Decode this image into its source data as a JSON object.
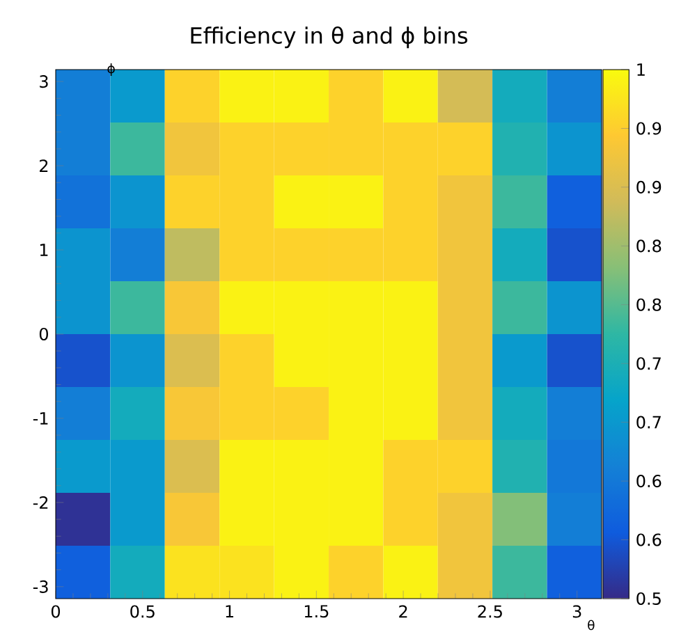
{
  "chart_data": {
    "type": "heatmap",
    "title": "Efficiency in θ and ϕ bins",
    "xlabel": "θ",
    "ylabel": "ϕ",
    "x": [
      0.157,
      0.471,
      0.785,
      1.1,
      1.414,
      1.728,
      2.042,
      2.356,
      2.67,
      2.985
    ],
    "y": [
      2.827,
      2.199,
      1.571,
      0.942,
      0.314,
      -0.314,
      -0.942,
      -1.571,
      -2.199,
      -2.827
    ],
    "xlim": [
      0,
      3.1416
    ],
    "ylim": [
      -3.1416,
      3.1416
    ],
    "xticks": [
      0,
      0.5,
      1,
      1.5,
      2,
      2.5,
      3
    ],
    "yticks": [
      -3,
      -2,
      -1,
      0,
      1,
      2,
      3
    ],
    "clim": [
      0.5,
      1
    ],
    "cticks": [
      {
        "value": 0.5,
        "label": "0.5"
      },
      {
        "value": 0.5556,
        "label": "0.6"
      },
      {
        "value": 0.6111,
        "label": "0.6"
      },
      {
        "value": 0.6667,
        "label": "0.7"
      },
      {
        "value": 0.7222,
        "label": "0.7"
      },
      {
        "value": 0.7778,
        "label": "0.8"
      },
      {
        "value": 0.8333,
        "label": "0.8"
      },
      {
        "value": 0.8889,
        "label": "0.9"
      },
      {
        "value": 0.9444,
        "label": "0.9"
      },
      {
        "value": 1,
        "label": "1"
      }
    ],
    "cells": [
      [
        0.62,
        0.67,
        0.95,
        0.99,
        0.99,
        0.95,
        0.99,
        0.88,
        0.71,
        0.62
      ],
      [
        0.62,
        0.76,
        0.92,
        0.95,
        0.95,
        0.95,
        0.95,
        0.95,
        0.73,
        0.66
      ],
      [
        0.6,
        0.66,
        0.95,
        0.95,
        0.99,
        0.99,
        0.95,
        0.92,
        0.76,
        0.57
      ],
      [
        0.66,
        0.62,
        0.86,
        0.95,
        0.95,
        0.95,
        0.95,
        0.92,
        0.71,
        0.55
      ],
      [
        0.66,
        0.76,
        0.93,
        0.99,
        0.99,
        0.99,
        0.99,
        0.92,
        0.76,
        0.66
      ],
      [
        0.55,
        0.66,
        0.89,
        0.95,
        0.99,
        0.99,
        0.99,
        0.92,
        0.67,
        0.55
      ],
      [
        0.62,
        0.71,
        0.93,
        0.95,
        0.95,
        0.99,
        0.99,
        0.92,
        0.71,
        0.62
      ],
      [
        0.67,
        0.67,
        0.89,
        0.99,
        0.99,
        0.99,
        0.95,
        0.95,
        0.73,
        0.61
      ],
      [
        0.51,
        0.67,
        0.93,
        0.99,
        0.99,
        0.99,
        0.95,
        0.92,
        0.81,
        0.62
      ],
      [
        0.57,
        0.71,
        0.97,
        0.97,
        0.99,
        0.95,
        0.99,
        0.92,
        0.76,
        0.57
      ]
    ]
  }
}
